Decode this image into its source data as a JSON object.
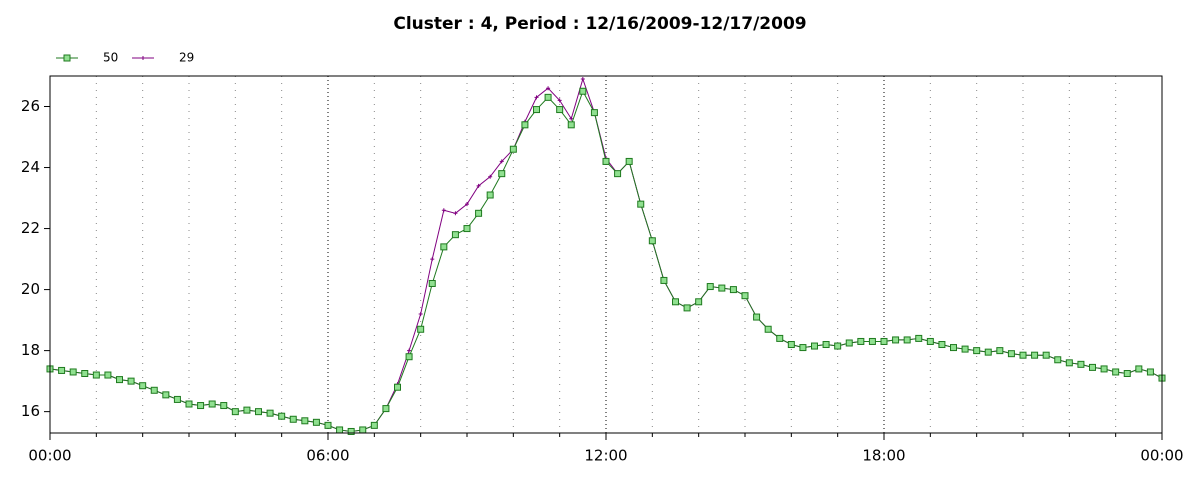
{
  "chart_data": {
    "type": "line",
    "title": "Cluster : 4, Period : 12/16/2009-12/17/2009",
    "x": [
      0,
      0.25,
      0.5,
      0.75,
      1,
      1.25,
      1.5,
      1.75,
      2,
      2.25,
      2.5,
      2.75,
      3,
      3.25,
      3.5,
      3.75,
      4,
      4.25,
      4.5,
      4.75,
      5,
      5.25,
      5.5,
      5.75,
      6,
      6.25,
      6.5,
      6.75,
      7,
      7.25,
      7.5,
      7.75,
      8,
      8.25,
      8.5,
      8.75,
      9,
      9.25,
      9.5,
      9.75,
      10,
      10.25,
      10.5,
      10.75,
      11,
      11.25,
      11.5,
      11.75,
      12,
      12.25,
      12.5,
      12.75,
      13,
      13.25,
      13.5,
      13.75,
      14,
      14.25,
      14.5,
      14.75,
      15,
      15.25,
      15.5,
      15.75,
      16,
      16.25,
      16.5,
      16.75,
      17,
      17.25,
      17.5,
      17.75,
      18,
      18.25,
      18.5,
      18.75,
      19,
      19.25,
      19.5,
      19.75,
      20,
      20.25,
      20.5,
      20.75,
      21,
      21.25,
      21.5,
      21.75,
      22,
      22.25,
      22.5,
      22.75,
      23,
      23.25,
      23.5,
      23.75,
      24
    ],
    "series": [
      {
        "name": "50",
        "color": "#1f7a1f",
        "marker": "square",
        "marker_fill": "#90e090",
        "values": [
          17.4,
          17.35,
          17.3,
          17.25,
          17.2,
          17.2,
          17.05,
          17.0,
          16.85,
          16.7,
          16.55,
          16.4,
          16.25,
          16.2,
          16.25,
          16.2,
          16.0,
          16.05,
          16.0,
          15.95,
          15.85,
          15.75,
          15.7,
          15.65,
          15.55,
          15.4,
          15.35,
          15.4,
          15.55,
          16.1,
          16.8,
          17.8,
          18.7,
          20.2,
          21.4,
          21.8,
          22.0,
          22.5,
          23.1,
          23.8,
          24.6,
          25.4,
          25.9,
          26.3,
          25.9,
          25.4,
          26.5,
          25.8,
          24.2,
          23.8,
          24.2,
          22.8,
          21.6,
          20.3,
          19.6,
          19.4,
          19.6,
          20.1,
          20.05,
          20.0,
          19.8,
          19.1,
          18.7,
          18.4,
          18.2,
          18.1,
          18.15,
          18.2,
          18.15,
          18.25,
          18.3,
          18.3,
          18.3,
          18.35,
          18.35,
          18.4,
          18.3,
          18.2,
          18.1,
          18.05,
          18.0,
          17.95,
          18.0,
          17.9,
          17.85,
          17.85,
          17.85,
          17.7,
          17.6,
          17.55,
          17.45,
          17.4,
          17.3,
          17.25,
          17.4,
          17.3,
          17.1
        ]
      },
      {
        "name": "29",
        "color": "#800080",
        "marker": "plus",
        "values": [
          17.4,
          17.35,
          17.3,
          17.25,
          17.2,
          17.2,
          17.05,
          17.0,
          16.85,
          16.7,
          16.55,
          16.4,
          16.25,
          16.2,
          16.25,
          16.2,
          16.0,
          16.05,
          16.0,
          15.95,
          15.85,
          15.75,
          15.7,
          15.65,
          15.55,
          15.4,
          15.35,
          15.4,
          15.55,
          16.1,
          16.9,
          18.0,
          19.2,
          21.0,
          22.6,
          22.5,
          22.8,
          23.4,
          23.7,
          24.2,
          24.6,
          25.5,
          26.3,
          26.6,
          26.2,
          25.6,
          26.9,
          25.8,
          24.3,
          23.8,
          24.2,
          22.8,
          21.6,
          20.3,
          19.6,
          19.4,
          19.6,
          20.1,
          20.05,
          20.0,
          19.8,
          19.1,
          18.7,
          18.4,
          18.2,
          18.1,
          18.15,
          18.2,
          18.15,
          18.25,
          18.3,
          18.3,
          18.3,
          18.35,
          18.35,
          18.4,
          18.3,
          18.2,
          18.1,
          18.05,
          18.0,
          17.95,
          18.0,
          17.9,
          17.85,
          17.85,
          17.85,
          17.7,
          17.6,
          17.55,
          17.45,
          17.4,
          17.3,
          17.25,
          17.4,
          17.3,
          17.1
        ]
      }
    ],
    "xlim": [
      0,
      24
    ],
    "xticks": [
      {
        "value": 0,
        "label": "00:00"
      },
      {
        "value": 6,
        "label": "06:00"
      },
      {
        "value": 12,
        "label": "12:00"
      },
      {
        "value": 18,
        "label": "18:00"
      },
      {
        "value": 24,
        "label": "00:00"
      }
    ],
    "ylim": [
      15.3,
      27
    ],
    "yticks": [
      16,
      18,
      20,
      22,
      24,
      26
    ],
    "grid": "x",
    "legend": "top-left"
  }
}
